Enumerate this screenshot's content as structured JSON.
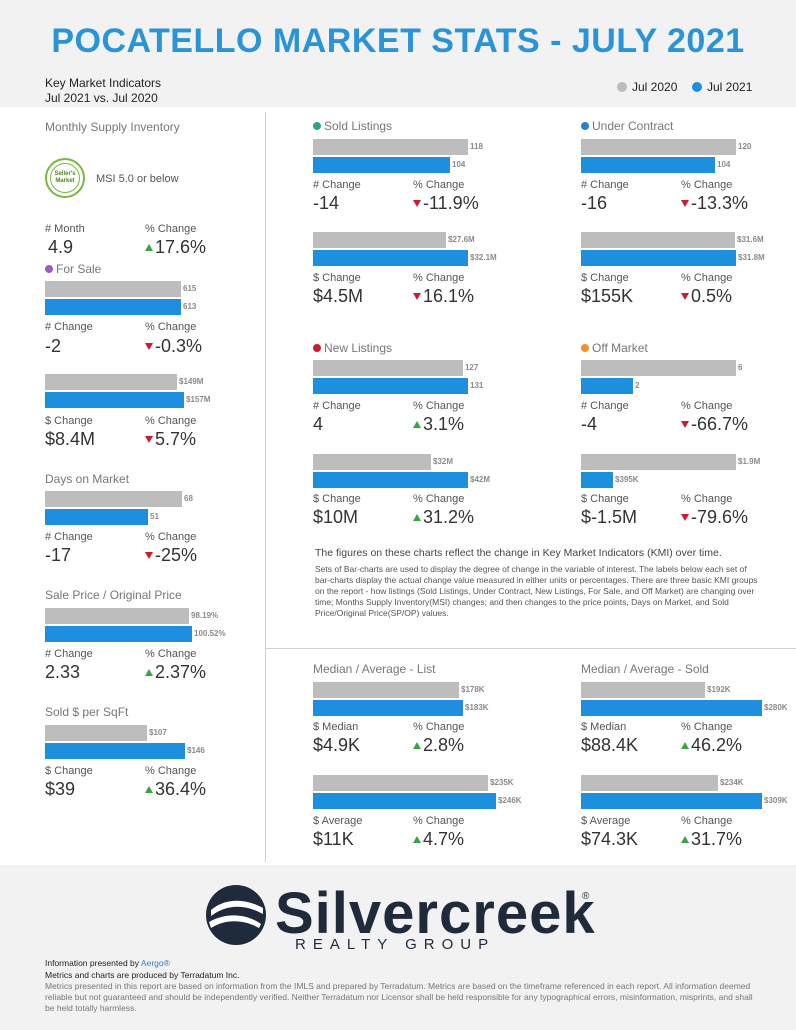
{
  "header": {
    "title": "POCATELLO MARKET STATS - JULY 2021",
    "subtitle_line1": "Key Market Indicators",
    "subtitle_line2": "Jul 2021 vs. Jul 2020",
    "legend": [
      {
        "label": "Jul 2020",
        "color": "#bdbdbd"
      },
      {
        "label": "Jul 2021",
        "color": "#1e8fde"
      }
    ]
  },
  "colors": {
    "prev": "#bdbdbd",
    "curr": "#1e8fde",
    "up": "#3aa346",
    "down": "#cc1b2e"
  },
  "msi": {
    "title": "Monthly Supply Inventory",
    "badge_line1": "Seller's",
    "badge_line2": "Market",
    "note": "MSI 5.0 or below",
    "num_label": "# Month",
    "num_value": "4.9",
    "pct_label": "% Change",
    "pct_value": "17.6%",
    "pct_dir": "up"
  },
  "charts": [
    {
      "key": "for_sale_count",
      "title": "For Sale",
      "dot": "#9b59c6",
      "type": "bar",
      "series": [
        {
          "name": "Jul 2020",
          "value": 615,
          "label": "615"
        },
        {
          "name": "Jul 2021",
          "value": 613,
          "label": "613"
        }
      ],
      "num_label": "# Change",
      "num_value": "-2",
      "pct_label": "% Change",
      "pct_value": "-0.3%",
      "pct_dir": "down"
    },
    {
      "key": "for_sale_volume",
      "title": "",
      "dot": "",
      "type": "bar",
      "series": [
        {
          "name": "Jul 2020",
          "value": 149,
          "label": "$149M"
        },
        {
          "name": "Jul 2021",
          "value": 157,
          "label": "$157M"
        }
      ],
      "num_label": "$ Change",
      "num_value": "$8.4M",
      "pct_label": "% Change",
      "pct_value": "5.7%",
      "pct_dir": "down"
    },
    {
      "key": "days_on_market",
      "title": "Days on Market",
      "dot": "",
      "type": "bar",
      "series": [
        {
          "name": "Jul 2020",
          "value": 68,
          "label": "68"
        },
        {
          "name": "Jul 2021",
          "value": 51,
          "label": "51"
        }
      ],
      "num_label": "# Change",
      "num_value": "-17",
      "pct_label": "% Change",
      "pct_value": "-25%",
      "pct_dir": "down"
    },
    {
      "key": "sp_op",
      "title": "Sale Price / Original Price",
      "dot": "",
      "type": "bar",
      "series": [
        {
          "name": "Jul 2020",
          "value": 98.19,
          "label": "98.19%"
        },
        {
          "name": "Jul 2021",
          "value": 100.52,
          "label": "100.52%"
        }
      ],
      "num_label": "# Change",
      "num_value": "2.33",
      "pct_label": "% Change",
      "pct_value": "2.37%",
      "pct_dir": "up"
    },
    {
      "key": "sold_per_sqft",
      "title": "Sold $ per SqFt",
      "dot": "",
      "type": "bar",
      "series": [
        {
          "name": "Jul 2020",
          "value": 107,
          "label": "$107"
        },
        {
          "name": "Jul 2021",
          "value": 146,
          "label": "$146"
        }
      ],
      "num_label": "$ Change",
      "num_value": "$39",
      "pct_label": "% Change",
      "pct_value": "36.4%",
      "pct_dir": "up"
    },
    {
      "key": "sold_count",
      "title": "Sold Listings",
      "dot": "#2aa58a",
      "type": "bar",
      "series": [
        {
          "name": "Jul 2020",
          "value": 118,
          "label": "118"
        },
        {
          "name": "Jul 2021",
          "value": 104,
          "label": "104"
        }
      ],
      "num_label": "# Change",
      "num_value": "-14",
      "pct_label": "% Change",
      "pct_value": "-11.9%",
      "pct_dir": "down"
    },
    {
      "key": "sold_volume",
      "title": "",
      "dot": "",
      "type": "bar",
      "series": [
        {
          "name": "Jul 2020",
          "value": 27.6,
          "label": "$27.6M"
        },
        {
          "name": "Jul 2021",
          "value": 32.1,
          "label": "$32.1M"
        }
      ],
      "num_label": "$ Change",
      "num_value": "$4.5M",
      "pct_label": "% Change",
      "pct_value": "16.1%",
      "pct_dir": "down"
    },
    {
      "key": "uc_count",
      "title": "Under Contract",
      "dot": "#2a7fd0",
      "type": "bar",
      "series": [
        {
          "name": "Jul 2020",
          "value": 120,
          "label": "120"
        },
        {
          "name": "Jul 2021",
          "value": 104,
          "label": "104"
        }
      ],
      "num_label": "# Change",
      "num_value": "-16",
      "pct_label": "% Change",
      "pct_value": "-13.3%",
      "pct_dir": "down"
    },
    {
      "key": "uc_volume",
      "title": "",
      "dot": "",
      "type": "bar",
      "series": [
        {
          "name": "Jul 2020",
          "value": 31.6,
          "label": "$31.6M"
        },
        {
          "name": "Jul 2021",
          "value": 31.8,
          "label": "$31.8M"
        }
      ],
      "num_label": "$ Change",
      "num_value": "$155K",
      "pct_label": "% Change",
      "pct_value": "0.5%",
      "pct_dir": "down"
    },
    {
      "key": "new_count",
      "title": "New Listings",
      "dot": "#cc1b2e",
      "type": "bar",
      "series": [
        {
          "name": "Jul 2020",
          "value": 127,
          "label": "127"
        },
        {
          "name": "Jul 2021",
          "value": 131,
          "label": "131"
        }
      ],
      "num_label": "# Change",
      "num_value": "4",
      "pct_label": "% Change",
      "pct_value": "3.1%",
      "pct_dir": "up"
    },
    {
      "key": "new_volume",
      "title": "",
      "dot": "",
      "type": "bar",
      "series": [
        {
          "name": "Jul 2020",
          "value": 32,
          "label": "$32M"
        },
        {
          "name": "Jul 2021",
          "value": 42,
          "label": "$42M"
        }
      ],
      "num_label": "$ Change",
      "num_value": "$10M",
      "pct_label": "% Change",
      "pct_value": "31.2%",
      "pct_dir": "up"
    },
    {
      "key": "off_count",
      "title": "Off Market",
      "dot": "#f0922b",
      "type": "bar",
      "series": [
        {
          "name": "Jul 2020",
          "value": 6,
          "label": "6"
        },
        {
          "name": "Jul 2021",
          "value": 2,
          "label": "2"
        }
      ],
      "num_label": "# Change",
      "num_value": "-4",
      "pct_label": "% Change",
      "pct_value": "-66.7%",
      "pct_dir": "down"
    },
    {
      "key": "off_volume",
      "title": "",
      "dot": "",
      "type": "bar",
      "series": [
        {
          "name": "Jul 2020",
          "value": 1.9,
          "label": "$1.9M"
        },
        {
          "name": "Jul 2021",
          "value": 0.395,
          "label": "$395K"
        }
      ],
      "num_label": "$ Change",
      "num_value": "$-1.5M",
      "pct_label": "% Change",
      "pct_value": "-79.6%",
      "pct_dir": "down"
    },
    {
      "key": "list_median",
      "title": "Median / Average - List",
      "dot": "",
      "type": "bar",
      "series": [
        {
          "name": "Jul 2020",
          "value": 178,
          "label": "$178K"
        },
        {
          "name": "Jul 2021",
          "value": 183,
          "label": "$183K"
        }
      ],
      "num_label": "$ Median",
      "num_value": "$4.9K",
      "pct_label": "% Change",
      "pct_value": "2.8%",
      "pct_dir": "up"
    },
    {
      "key": "list_average",
      "title": "",
      "dot": "",
      "type": "bar",
      "series": [
        {
          "name": "Jul 2020",
          "value": 235,
          "label": "$235K"
        },
        {
          "name": "Jul 2021",
          "value": 246,
          "label": "$246K"
        }
      ],
      "num_label": "$ Average",
      "num_value": "$11K",
      "pct_label": "% Change",
      "pct_value": "4.7%",
      "pct_dir": "up"
    },
    {
      "key": "sold_median",
      "title": "Median / Average - Sold",
      "dot": "",
      "type": "bar",
      "series": [
        {
          "name": "Jul 2020",
          "value": 192,
          "label": "$192K"
        },
        {
          "name": "Jul 2021",
          "value": 280,
          "label": "$280K"
        }
      ],
      "num_label": "$ Median",
      "num_value": "$88.4K",
      "pct_label": "% Change",
      "pct_value": "46.2%",
      "pct_dir": "up"
    },
    {
      "key": "sold_average",
      "title": "",
      "dot": "",
      "type": "bar",
      "series": [
        {
          "name": "Jul 2020",
          "value": 234,
          "label": "$234K"
        },
        {
          "name": "Jul 2021",
          "value": 309,
          "label": "$309K"
        }
      ],
      "num_label": "$ Average",
      "num_value": "$74.3K",
      "pct_label": "% Change",
      "pct_value": "31.7%",
      "pct_dir": "up"
    }
  ],
  "description": {
    "bold": "The figures on these charts reflect the change in Key Market Indicators (KMI) over time.",
    "body": "Sets of Bar-charts are used to display the degree of change in the variable of interest. The labels below each set of bar-charts display the actual change value measured in either units or percentages. There are three basic KMI groups on the report - how listings (Sold Listings, Under Contract, New Listings, For Sale, and Off Market) are changing over time; Months Supply Inventory(MSI) changes; and then changes to the price points, Days on Market, and Sold Price/Original Price(SP/OP) values."
  },
  "footer": {
    "logo_name": "Silvercreek",
    "logo_reg": "®",
    "logo_sub": "REALTY GROUP",
    "presented_prefix": "Information presented by ",
    "presented_link": "Aergo®",
    "produced": "Metrics and charts are produced by Terradatum Inc.",
    "disclaimer": "Metrics presented in this report are based on information from the IMLS and prepared by Terradatum. Metrics are based on the timeframe referenced in each report. All information deemed reliable but not guaranteed and should be independently verified. Neither Terradatum nor Licensor shall be held responsible for any typographical errors, misinformation, misprints, and shall be held totally harmless."
  }
}
